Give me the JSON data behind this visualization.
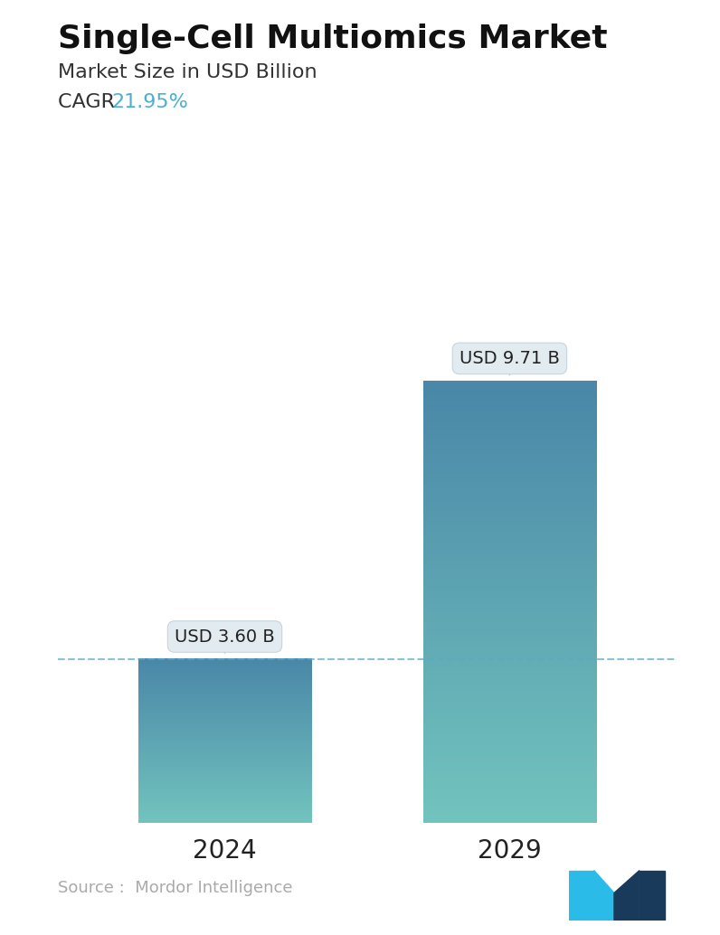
{
  "title": "Single-Cell Multiomics Market",
  "subtitle": "Market Size in USD Billion",
  "cagr_label": "CAGR ",
  "cagr_value": "21.95%",
  "cagr_color": "#4DAFCF",
  "categories": [
    "2024",
    "2029"
  ],
  "values": [
    3.6,
    9.71
  ],
  "bar_labels": [
    "USD 3.60 B",
    "USD 9.71 B"
  ],
  "bar_top_color": "#4A87A8",
  "bar_bottom_color": "#72C4BE",
  "dashed_line_color": "#5BA8C4",
  "source_text": "Source :  Mordor Intelligence",
  "source_color": "#AAAAAA",
  "background_color": "#FFFFFF",
  "title_fontsize": 26,
  "subtitle_fontsize": 16,
  "cagr_fontsize": 16,
  "bar_label_fontsize": 14,
  "xtick_fontsize": 20,
  "source_fontsize": 13,
  "ylim": [
    0,
    11.5
  ],
  "bar_width": 0.28,
  "x_positions": [
    0.27,
    0.73
  ]
}
